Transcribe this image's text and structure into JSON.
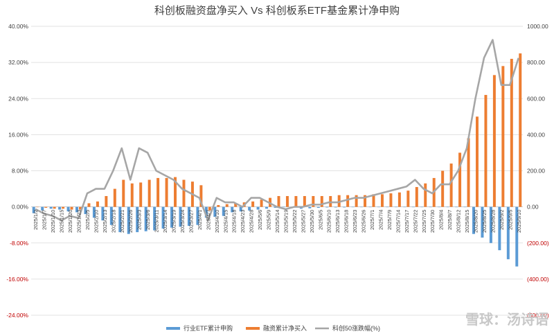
{
  "chart_data": {
    "type": "bar+line",
    "title": "科创板融资盘净买入 Vs 科创板系ETF基金累计净申购",
    "left_axis": {
      "ylim": [
        -0.24,
        0.4
      ],
      "ticks": [
        "40.00%",
        "32.00%",
        "24.00%",
        "16.00%",
        "8.00%",
        "0.00%",
        "-8.00%",
        "-16.00%",
        "-24.00%"
      ],
      "tick_values": [
        0.4,
        0.32,
        0.24,
        0.16,
        0.08,
        0,
        -0.08,
        -0.16,
        -0.24
      ]
    },
    "right_axis": {
      "ylim": [
        -600,
        1000
      ],
      "ticks": [
        "1000.00",
        "800.00",
        "600.00",
        "400.00",
        "200.00",
        "0.00",
        "(200.00)",
        "(400.00)",
        "(600.00)"
      ],
      "tick_values": [
        1000,
        800,
        600,
        400,
        200,
        0,
        -200,
        -400,
        -600
      ],
      "negative_color": "#c00000"
    },
    "x_tick_labels": [
      "2025/1/2",
      "2025/1/7",
      "2025/1/10",
      "2025/1/15",
      "2025/1/20",
      "2025/1/23",
      "2025/2/5",
      "2025/2/10",
      "2025/2/13",
      "2025/2/18",
      "2025/2/21",
      "2025/2/26",
      "2025/3/3",
      "2025/3/6",
      "2025/3/11",
      "2025/3/14",
      "2025/3/19",
      "2025/3/24",
      "2025/3/27",
      "2025/4/1",
      "2025/4/7",
      "2025/4/10",
      "2025/4/15",
      "2025/4/18",
      "2025/4/23",
      "2025/4/28",
      "2025/5/6",
      "2025/5/9",
      "2025/5/14",
      "2025/5/19",
      "2025/5/22",
      "2025/5/27",
      "2025/5/30",
      "2025/6/5",
      "2025/6/10",
      "2025/6/13",
      "2025/6/18",
      "2025/6/23",
      "2025/6/26",
      "2025/7/1",
      "2025/7/4",
      "2025/7/9",
      "2025/7/14",
      "2025/7/17",
      "2025/7/22",
      "2025/7/25",
      "2025/7/30",
      "2025/8/4",
      "2025/8/7",
      "2025/8/12",
      "2025/8/15",
      "2025/8/20",
      "2025/8/25",
      "2025/8/28",
      "2025/9/2",
      "2025/9/5",
      "2025/9/10"
    ],
    "series": [
      {
        "name": "行业ETF累计申购",
        "type": "bar",
        "axis": "right",
        "color": "#5b9bd5",
        "values": [
          -35,
          -20,
          -10,
          -15,
          -25,
          -30,
          -40,
          -60,
          -75,
          -100,
          -140,
          -150,
          -140,
          -135,
          -130,
          -120,
          -115,
          -110,
          -105,
          -100,
          -60,
          -55,
          -50,
          -30,
          -25,
          -20,
          -15,
          -10,
          -5,
          0,
          -5,
          -10,
          -8,
          -5,
          -3,
          -3,
          -3,
          0,
          0,
          0,
          0,
          0,
          0,
          0,
          0,
          0,
          0,
          0,
          0,
          0,
          0,
          -150,
          -170,
          -200,
          -240,
          -290,
          -330
        ]
      },
      {
        "name": "融资累计净买入",
        "type": "bar",
        "axis": "right",
        "color": "#ed7d31",
        "values": [
          0,
          -5,
          -10,
          -10,
          -15,
          -15,
          20,
          30,
          60,
          100,
          150,
          130,
          135,
          150,
          160,
          160,
          165,
          150,
          140,
          120,
          -20,
          10,
          15,
          20,
          25,
          30,
          40,
          50,
          60,
          60,
          60,
          60,
          60,
          60,
          60,
          65,
          65,
          65,
          65,
          70,
          70,
          75,
          80,
          90,
          110,
          130,
          160,
          200,
          240,
          300,
          380,
          500,
          620,
          730,
          780,
          820,
          850
        ]
      },
      {
        "name": "科创50涨跌幅(%)",
        "type": "line",
        "axis": "left",
        "color": "#a6a6a6",
        "values": [
          -0.005,
          -0.015,
          -0.02,
          -0.03,
          -0.02,
          -0.025,
          0.03,
          0.04,
          0.04,
          0.08,
          0.13,
          0.06,
          0.13,
          0.12,
          0.08,
          0.07,
          0.06,
          0.04,
          0.03,
          0.02,
          -0.03,
          0.02,
          0.01,
          0.01,
          0.0,
          0.02,
          0.02,
          0.01,
          0.0,
          -0.005,
          0.0,
          0.0,
          0.005,
          0.005,
          0.01,
          0.01,
          0.015,
          0.02,
          0.02,
          0.025,
          0.03,
          0.035,
          0.04,
          0.045,
          0.06,
          0.04,
          0.03,
          0.05,
          0.05,
          0.08,
          0.13,
          0.24,
          0.33,
          0.37,
          0.27,
          0.27,
          0.33
        ]
      }
    ],
    "legend": {
      "position": "bottom"
    }
  },
  "watermark": "雪球：汤诗语"
}
